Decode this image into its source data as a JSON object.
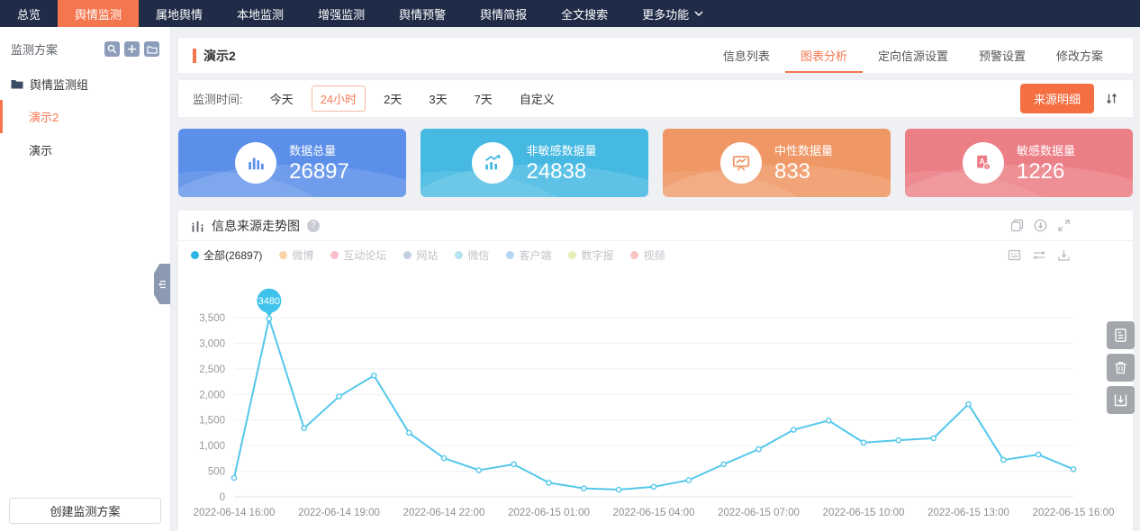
{
  "nav": {
    "items": [
      "总览",
      "舆情监测",
      "属地舆情",
      "本地监测",
      "增强监测",
      "舆情预警",
      "舆情简报",
      "全文搜索",
      "更多功能"
    ],
    "active": "舆情监测",
    "active_color": "#f4764e"
  },
  "sidebar": {
    "title": "监测方案",
    "tools": [
      "search-icon",
      "plus-icon",
      "folder-icon"
    ],
    "group_label": "舆情监测组",
    "plans": [
      {
        "label": "演示2",
        "active": true
      },
      {
        "label": "演示",
        "active": false
      }
    ],
    "create_button": "创建监测方案"
  },
  "header": {
    "title": "演示2",
    "tabs": [
      {
        "label": "信息列表",
        "active": false
      },
      {
        "label": "图表分析",
        "active": true
      },
      {
        "label": "定向信源设置",
        "active": false
      },
      {
        "label": "预警设置",
        "active": false
      },
      {
        "label": "修改方案",
        "active": false
      }
    ]
  },
  "filters": {
    "label": "监测时间:",
    "options": [
      {
        "label": "今天",
        "selected": false
      },
      {
        "label": "24小时",
        "selected": true
      },
      {
        "label": "2天",
        "selected": false
      },
      {
        "label": "3天",
        "selected": false
      },
      {
        "label": "7天",
        "selected": false
      },
      {
        "label": "自定义",
        "selected": false
      }
    ],
    "source_detail_button": "来源明细"
  },
  "stat_cards": [
    {
      "label": "数据总量",
      "value": "26897",
      "color": "#5b8fe9",
      "icon": "bar-chart-icon"
    },
    {
      "label": "非敏感数据量",
      "value": "24838",
      "color": "#45b9e2",
      "icon": "trend-up-icon"
    },
    {
      "label": "中性数据量",
      "value": "833",
      "color": "#ef9765",
      "icon": "presentation-chart-icon"
    },
    {
      "label": "敏感数据量",
      "value": "1226",
      "color": "#ec7e86",
      "icon": "sensitive-doc-icon"
    }
  ],
  "chart_panel": {
    "title": "信息来源走势图",
    "header_tools": [
      "copy-icon",
      "download-circle-icon",
      "expand-icon"
    ],
    "legend_tools": [
      "data-view-icon",
      "swap-icon",
      "save-image-icon"
    ],
    "legend": [
      {
        "label": "全部(26897)",
        "color": "#2db6e8",
        "active": true
      },
      {
        "label": "微博",
        "color": "#fad4a6",
        "active": false
      },
      {
        "label": "互动论坛",
        "color": "#f8c0cb",
        "active": false
      },
      {
        "label": "网站",
        "color": "#c4cfdf",
        "active": false
      },
      {
        "label": "微信",
        "color": "#b6e3f0",
        "active": false
      },
      {
        "label": "客户端",
        "color": "#b4d5f4",
        "active": false
      },
      {
        "label": "数字报",
        "color": "#e5edb9",
        "active": false
      },
      {
        "label": "视频",
        "color": "#f9c4c1",
        "active": false
      }
    ]
  },
  "float_tools": [
    "report-icon",
    "trash-icon",
    "download-icon"
  ],
  "chart_data": {
    "type": "line",
    "title": "信息来源走势图",
    "series": [
      {
        "name": "全部",
        "color": "#54c7ea",
        "values": [
          370,
          3480,
          1340,
          1960,
          2370,
          1250,
          755,
          520,
          635,
          275,
          165,
          140,
          195,
          325,
          635,
          930,
          1310,
          1490,
          1060,
          1105,
          1145,
          1810,
          720,
          825,
          540
        ]
      }
    ],
    "x_labels": [
      "2022-06-14 16:00",
      "2022-06-14 19:00",
      "2022-06-14 22:00",
      "2022-06-15 01:00",
      "2022-06-15 04:00",
      "2022-06-15 07:00",
      "2022-06-15 10:00",
      "2022-06-15 13:00",
      "2022-06-15 16:00"
    ],
    "x_tick_every": 3,
    "ylim": [
      0,
      3500
    ],
    "ytick_step": 500,
    "marked_point": {
      "index": 1,
      "label": "3480"
    },
    "grid": true,
    "legend_position": "top-left"
  }
}
